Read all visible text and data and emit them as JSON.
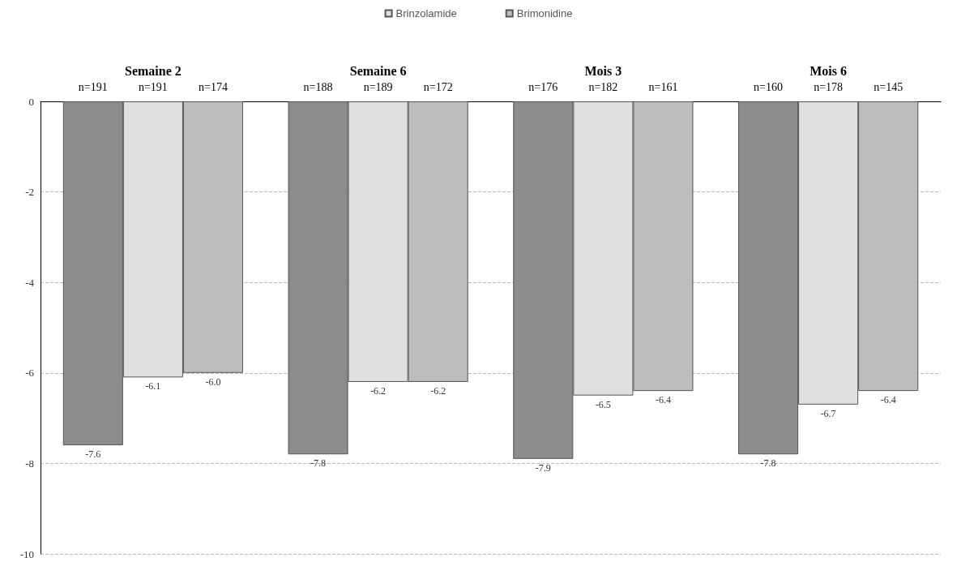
{
  "chart_data": {
    "type": "bar",
    "categories": [
      "Semaine 2",
      "Semaine 6",
      "Mois 3",
      "Mois 6"
    ],
    "series": [
      {
        "color": "#8c8c8c",
        "values": [
          -7.6,
          -7.8,
          -7.9,
          -7.8
        ],
        "value_labels": [
          "-7.6",
          "-7.8",
          "-7.9",
          "-7.8"
        ]
      },
      {
        "name": "Brinzolamide",
        "color": "#e0e0e0",
        "values": [
          -6.1,
          -6.2,
          -6.5,
          -6.7
        ],
        "value_labels": [
          "-6.1",
          "-6.2",
          "-6.5",
          "-6.7"
        ]
      },
      {
        "name": "Brimonidine",
        "color": "#bdbdbd",
        "values": [
          -6.0,
          -6.2,
          -6.4,
          -6.4
        ],
        "value_labels": [
          "-6.0",
          "-6.2",
          "-6.4",
          "-6.4"
        ]
      }
    ],
    "annotations": [
      "n=191",
      "n=191",
      "n=174",
      "n=188",
      "n=189",
      "n=172",
      "n=176",
      "n=182",
      "n=161",
      "n=160",
      "n=178",
      "n=145"
    ],
    "ylim": [
      -10,
      0
    ],
    "yticks": [
      -10,
      -8,
      -6,
      -4,
      -2,
      0
    ],
    "grid": "y",
    "legend": "top"
  }
}
